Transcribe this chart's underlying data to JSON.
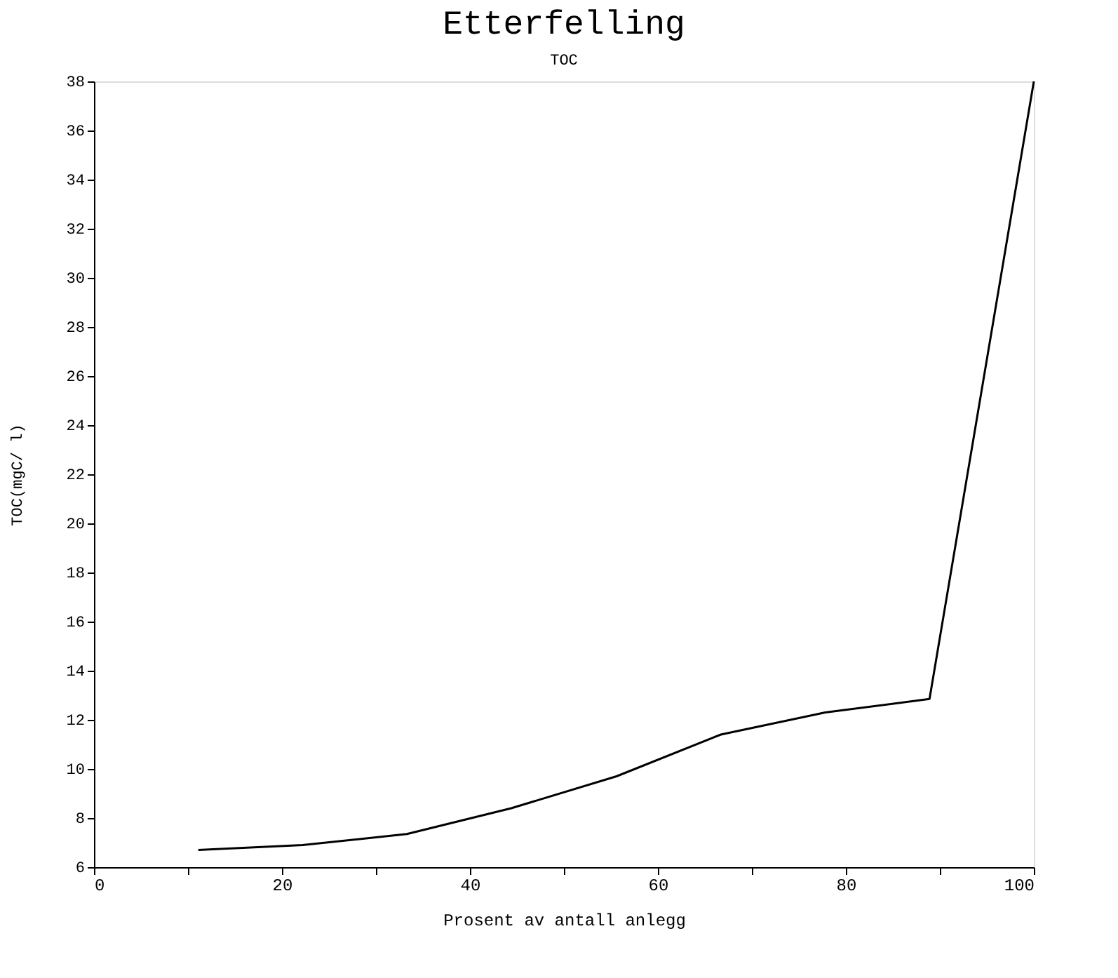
{
  "chart_data": {
    "type": "line",
    "title": "Etterfelling",
    "subtitle": "TOC",
    "xlabel": "Prosent av antall anlegg",
    "ylabel": "TOC(mgC/ l)",
    "x": [
      11.1,
      22.2,
      33.3,
      44.4,
      55.6,
      66.7,
      77.8,
      88.9,
      100
    ],
    "series": [
      {
        "color": "#000000",
        "values": [
          6.7,
          6.9,
          7.35,
          8.4,
          9.7,
          11.4,
          12.3,
          12.85,
          38
        ]
      }
    ],
    "xlim": [
      0,
      100
    ],
    "xticks": [
      0,
      {
        "value": 10,
        "label": null
      },
      20,
      {
        "value": 30,
        "label": null
      },
      40,
      {
        "value": 50,
        "label": null
      },
      60,
      {
        "value": 70,
        "label": null
      },
      80,
      {
        "value": 90,
        "label": null
      },
      100
    ],
    "ylim": [
      6,
      38
    ],
    "yticks": [
      6,
      8,
      10,
      12,
      14,
      16,
      18,
      20,
      22,
      24,
      26,
      28,
      30,
      32,
      34,
      36,
      38
    ],
    "grid": false,
    "legend": false,
    "marker": "none",
    "line_style": "solid"
  }
}
